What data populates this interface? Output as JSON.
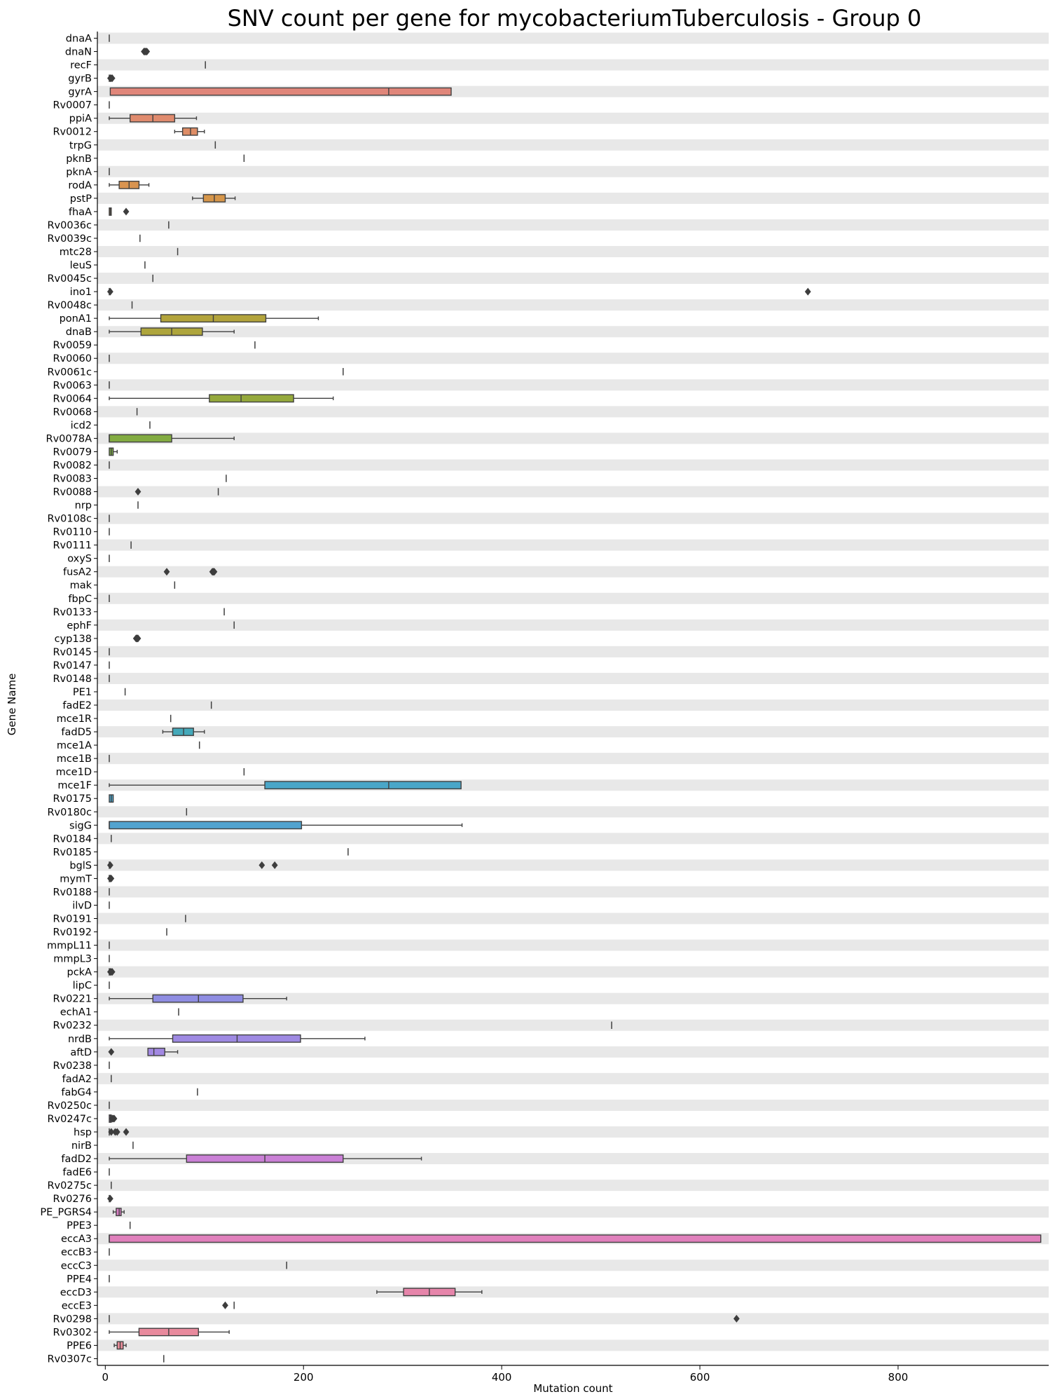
{
  "chart_data": {
    "type": "box",
    "orientation": "horizontal",
    "title": "SNV count per gene for mycobacteriumTuberculosis - Group 0",
    "xlabel": "Mutation count",
    "ylabel": "Gene Name",
    "xlim": [
      -8,
      952
    ],
    "xticks": [
      0,
      200,
      400,
      600,
      800
    ],
    "grid": false,
    "row_band_color": "#e8e8e8",
    "genes": [
      {
        "name": "dnaA",
        "q1": 4,
        "med": 4,
        "q3": 4,
        "wlo": 4,
        "whi": 4,
        "fliers": [],
        "color": "#e8837c"
      },
      {
        "name": "dnaN",
        "q1": 40,
        "med": 40,
        "q3": 40,
        "wlo": 40,
        "whi": 40,
        "fliers": [
          39,
          41,
          42
        ],
        "color": "#e8837c"
      },
      {
        "name": "recF",
        "q1": 101,
        "med": 101,
        "q3": 101,
        "wlo": 101,
        "whi": 101,
        "fliers": [],
        "color": "#e8837c"
      },
      {
        "name": "gyrB",
        "q1": 4,
        "med": 4,
        "q3": 4,
        "wlo": 4,
        "whi": 4,
        "fliers": [
          5,
          6,
          7
        ],
        "color": "#e8837c"
      },
      {
        "name": "gyrA",
        "q1": 5,
        "med": 286,
        "q3": 349,
        "wlo": 5,
        "whi": 349,
        "fliers": [],
        "color": "#e0867a"
      },
      {
        "name": "Rv0007",
        "q1": 4,
        "med": 4,
        "q3": 4,
        "wlo": 4,
        "whi": 4,
        "fliers": [],
        "color": "#e08a6e"
      },
      {
        "name": "ppiA",
        "q1": 25,
        "med": 48,
        "q3": 70,
        "wlo": 4,
        "whi": 92,
        "fliers": [],
        "color": "#e08b6e"
      },
      {
        "name": "Rv0012",
        "q1": 78,
        "med": 86,
        "q3": 93,
        "wlo": 70,
        "whi": 100,
        "fliers": [],
        "color": "#de8d66"
      },
      {
        "name": "trpG",
        "q1": 111,
        "med": 111,
        "q3": 111,
        "wlo": 111,
        "whi": 111,
        "fliers": [],
        "color": "#dd8f5f"
      },
      {
        "name": "pknB",
        "q1": 140,
        "med": 140,
        "q3": 140,
        "wlo": 140,
        "whi": 140,
        "fliers": [],
        "color": "#dc915a"
      },
      {
        "name": "pknA",
        "q1": 4,
        "med": 4,
        "q3": 4,
        "wlo": 4,
        "whi": 4,
        "fliers": [],
        "color": "#db9355"
      },
      {
        "name": "rodA",
        "q1": 14,
        "med": 24,
        "q3": 34,
        "wlo": 4,
        "whi": 44,
        "fliers": [],
        "color": "#d99450"
      },
      {
        "name": "pstP",
        "q1": 99,
        "med": 110,
        "q3": 121,
        "wlo": 88,
        "whi": 131,
        "fliers": [],
        "color": "#d6964a"
      },
      {
        "name": "fhaA",
        "q1": 4,
        "med": 5,
        "q3": 6,
        "wlo": 4,
        "whi": 6,
        "fliers": [
          21
        ],
        "color": "#d49846"
      },
      {
        "name": "Rv0036c",
        "q1": 64,
        "med": 64,
        "q3": 64,
        "wlo": 64,
        "whi": 64,
        "fliers": [],
        "color": "#d09a42"
      },
      {
        "name": "Rv0039c",
        "q1": 35,
        "med": 35,
        "q3": 35,
        "wlo": 35,
        "whi": 35,
        "fliers": [],
        "color": "#cc9c40"
      },
      {
        "name": "mtc28",
        "q1": 73,
        "med": 73,
        "q3": 73,
        "wlo": 73,
        "whi": 73,
        "fliers": [],
        "color": "#c89e3e"
      },
      {
        "name": "leuS",
        "q1": 40,
        "med": 40,
        "q3": 40,
        "wlo": 40,
        "whi": 40,
        "fliers": [],
        "color": "#c4a03c"
      },
      {
        "name": "Rv0045c",
        "q1": 48,
        "med": 48,
        "q3": 48,
        "wlo": 48,
        "whi": 48,
        "fliers": [],
        "color": "#c0a23c"
      },
      {
        "name": "ino1",
        "q1": 4,
        "med": 4,
        "q3": 4,
        "wlo": 4,
        "whi": 4,
        "fliers": [
          5,
          709
        ],
        "color": "#bca33c"
      },
      {
        "name": "Rv0048c",
        "q1": 27,
        "med": 27,
        "q3": 27,
        "wlo": 27,
        "whi": 27,
        "fliers": [],
        "color": "#b8a53c"
      },
      {
        "name": "ponA1",
        "q1": 56,
        "med": 109,
        "q3": 162,
        "wlo": 4,
        "whi": 215,
        "fliers": [],
        "color": "#b3a43c"
      },
      {
        "name": "dnaB",
        "q1": 36,
        "med": 67,
        "q3": 98,
        "wlo": 4,
        "whi": 130,
        "fliers": [],
        "color": "#aea53c"
      },
      {
        "name": "Rv0059",
        "q1": 151,
        "med": 151,
        "q3": 151,
        "wlo": 151,
        "whi": 151,
        "fliers": [],
        "color": "#a9a63c"
      },
      {
        "name": "Rv0060",
        "q1": 4,
        "med": 4,
        "q3": 4,
        "wlo": 4,
        "whi": 4,
        "fliers": [],
        "color": "#a4a73c"
      },
      {
        "name": "Rv0061c",
        "q1": 240,
        "med": 240,
        "q3": 240,
        "wlo": 240,
        "whi": 240,
        "fliers": [],
        "color": "#9fa83c"
      },
      {
        "name": "Rv0063",
        "q1": 4,
        "med": 4,
        "q3": 4,
        "wlo": 4,
        "whi": 4,
        "fliers": [],
        "color": "#9aa93c"
      },
      {
        "name": "Rv0064",
        "q1": 105,
        "med": 137,
        "q3": 190,
        "wlo": 4,
        "whi": 230,
        "fliers": [],
        "color": "#95a93c"
      },
      {
        "name": "Rv0068",
        "q1": 32,
        "med": 32,
        "q3": 32,
        "wlo": 32,
        "whi": 32,
        "fliers": [],
        "color": "#8faa3c"
      },
      {
        "name": "icd2",
        "q1": 45,
        "med": 45,
        "q3": 45,
        "wlo": 45,
        "whi": 45,
        "fliers": [],
        "color": "#89ab3c"
      },
      {
        "name": "Rv0078A",
        "q1": 4,
        "med": 4,
        "q3": 67,
        "wlo": 4,
        "whi": 130,
        "fliers": [],
        "color": "#83ac42"
      },
      {
        "name": "Rv0079",
        "q1": 4,
        "med": 6,
        "q3": 8,
        "wlo": 4,
        "whi": 12,
        "fliers": [],
        "color": "#7dac48"
      },
      {
        "name": "Rv0082",
        "q1": 4,
        "med": 4,
        "q3": 4,
        "wlo": 4,
        "whi": 4,
        "fliers": [],
        "color": "#77ad4e"
      },
      {
        "name": "Rv0083",
        "q1": 122,
        "med": 122,
        "q3": 122,
        "wlo": 122,
        "whi": 122,
        "fliers": [],
        "color": "#71ad54"
      },
      {
        "name": "Rv0088",
        "q1": 114,
        "med": 114,
        "q3": 114,
        "wlo": 114,
        "whi": 114,
        "fliers": [
          33
        ],
        "color": "#6bae5a"
      },
      {
        "name": "nrp",
        "q1": 33,
        "med": 33,
        "q3": 33,
        "wlo": 33,
        "whi": 33,
        "fliers": [],
        "color": "#65ae60"
      },
      {
        "name": "Rv0108c",
        "q1": 4,
        "med": 4,
        "q3": 4,
        "wlo": 4,
        "whi": 4,
        "fliers": [],
        "color": "#5fae66"
      },
      {
        "name": "Rv0110",
        "q1": 4,
        "med": 4,
        "q3": 4,
        "wlo": 4,
        "whi": 4,
        "fliers": [],
        "color": "#59ae6c"
      },
      {
        "name": "Rv0111",
        "q1": 26,
        "med": 26,
        "q3": 26,
        "wlo": 26,
        "whi": 26,
        "fliers": [],
        "color": "#53ae72"
      },
      {
        "name": "oxyS",
        "q1": 4,
        "med": 4,
        "q3": 4,
        "wlo": 4,
        "whi": 4,
        "fliers": [],
        "color": "#4eae78"
      },
      {
        "name": "fusA2",
        "q1": 109,
        "med": 109,
        "q3": 109,
        "wlo": 109,
        "whi": 109,
        "fliers": [
          62,
          108,
          110
        ],
        "color": "#4aae7e"
      },
      {
        "name": "mak",
        "q1": 70,
        "med": 70,
        "q3": 70,
        "wlo": 70,
        "whi": 70,
        "fliers": [],
        "color": "#46ae84"
      },
      {
        "name": "fbpC",
        "q1": 4,
        "med": 4,
        "q3": 4,
        "wlo": 4,
        "whi": 4,
        "fliers": [],
        "color": "#44ad8a"
      },
      {
        "name": "Rv0133",
        "q1": 120,
        "med": 120,
        "q3": 120,
        "wlo": 120,
        "whi": 120,
        "fliers": [],
        "color": "#43ad90"
      },
      {
        "name": "ephF",
        "q1": 130,
        "med": 130,
        "q3": 130,
        "wlo": 130,
        "whi": 130,
        "fliers": [],
        "color": "#42ad96"
      },
      {
        "name": "cyp138",
        "q1": 32,
        "med": 32,
        "q3": 32,
        "wlo": 32,
        "whi": 32,
        "fliers": [
          31,
          32,
          33
        ],
        "color": "#42ac9b"
      },
      {
        "name": "Rv0145",
        "q1": 4,
        "med": 4,
        "q3": 4,
        "wlo": 4,
        "whi": 4,
        "fliers": [],
        "color": "#42aca0"
      },
      {
        "name": "Rv0147",
        "q1": 4,
        "med": 4,
        "q3": 4,
        "wlo": 4,
        "whi": 4,
        "fliers": [],
        "color": "#42aba5"
      },
      {
        "name": "Rv0148",
        "q1": 4,
        "med": 4,
        "q3": 4,
        "wlo": 4,
        "whi": 4,
        "fliers": [],
        "color": "#42abaa"
      },
      {
        "name": "PE1",
        "q1": 20,
        "med": 20,
        "q3": 20,
        "wlo": 20,
        "whi": 20,
        "fliers": [],
        "color": "#42aaae"
      },
      {
        "name": "fadE2",
        "q1": 107,
        "med": 107,
        "q3": 107,
        "wlo": 107,
        "whi": 107,
        "fliers": [],
        "color": "#43aab2"
      },
      {
        "name": "mce1R",
        "q1": 66,
        "med": 66,
        "q3": 66,
        "wlo": 66,
        "whi": 66,
        "fliers": [],
        "color": "#44a9b6"
      },
      {
        "name": "fadD5",
        "q1": 68,
        "med": 79,
        "q3": 89,
        "wlo": 58,
        "whi": 100,
        "fliers": [],
        "color": "#45a9ba"
      },
      {
        "name": "mce1A",
        "q1": 95,
        "med": 95,
        "q3": 95,
        "wlo": 95,
        "whi": 95,
        "fliers": [],
        "color": "#46a8be"
      },
      {
        "name": "mce1B",
        "q1": 4,
        "med": 4,
        "q3": 4,
        "wlo": 4,
        "whi": 4,
        "fliers": [],
        "color": "#48a7c2"
      },
      {
        "name": "mce1D",
        "q1": 140,
        "med": 140,
        "q3": 140,
        "wlo": 140,
        "whi": 140,
        "fliers": [],
        "color": "#49a6c6"
      },
      {
        "name": "mce1F",
        "q1": 161,
        "med": 286,
        "q3": 359,
        "wlo": 4,
        "whi": 359,
        "fliers": [],
        "color": "#4aa6c8"
      },
      {
        "name": "Rv0175",
        "q1": 4,
        "med": 6,
        "q3": 8,
        "wlo": 4,
        "whi": 8,
        "fliers": [],
        "color": "#4ca5cb"
      },
      {
        "name": "Rv0180c",
        "q1": 82,
        "med": 82,
        "q3": 82,
        "wlo": 82,
        "whi": 82,
        "fliers": [],
        "color": "#4fa4cd"
      },
      {
        "name": "sigG",
        "q1": 4,
        "med": 4,
        "q3": 198,
        "wlo": 4,
        "whi": 360,
        "fliers": [],
        "color": "#52a3cf"
      },
      {
        "name": "Rv0184",
        "q1": 6,
        "med": 6,
        "q3": 6,
        "wlo": 6,
        "whi": 6,
        "fliers": [],
        "color": "#56a2d2"
      },
      {
        "name": "Rv0185",
        "q1": 245,
        "med": 245,
        "q3": 245,
        "wlo": 245,
        "whi": 245,
        "fliers": [],
        "color": "#5aa0d4"
      },
      {
        "name": "bglS",
        "q1": 4,
        "med": 4,
        "q3": 4,
        "wlo": 4,
        "whi": 4,
        "fliers": [
          5,
          158,
          171
        ],
        "color": "#5e9fd6"
      },
      {
        "name": "mymT",
        "q1": 4,
        "med": 4,
        "q3": 4,
        "wlo": 4,
        "whi": 4,
        "fliers": [
          5,
          6
        ],
        "color": "#639dd8"
      },
      {
        "name": "Rv0188",
        "q1": 4,
        "med": 4,
        "q3": 4,
        "wlo": 4,
        "whi": 4,
        "fliers": [],
        "color": "#689bda"
      },
      {
        "name": "ilvD",
        "q1": 4,
        "med": 4,
        "q3": 4,
        "wlo": 4,
        "whi": 4,
        "fliers": [],
        "color": "#6d99db"
      },
      {
        "name": "Rv0191",
        "q1": 81,
        "med": 81,
        "q3": 81,
        "wlo": 81,
        "whi": 81,
        "fliers": [],
        "color": "#7297dd"
      },
      {
        "name": "Rv0192",
        "q1": 62,
        "med": 62,
        "q3": 62,
        "wlo": 62,
        "whi": 62,
        "fliers": [],
        "color": "#7795de"
      },
      {
        "name": "mmpL11",
        "q1": 4,
        "med": 4,
        "q3": 4,
        "wlo": 4,
        "whi": 4,
        "fliers": [],
        "color": "#7c93df"
      },
      {
        "name": "mmpL3",
        "q1": 4,
        "med": 4,
        "q3": 4,
        "wlo": 4,
        "whi": 4,
        "fliers": [],
        "color": "#8191e0"
      },
      {
        "name": "pckA",
        "q1": 4,
        "med": 4,
        "q3": 4,
        "wlo": 4,
        "whi": 4,
        "fliers": [
          5,
          6,
          7
        ],
        "color": "#868fe1"
      },
      {
        "name": "lipC",
        "q1": 4,
        "med": 4,
        "q3": 4,
        "wlo": 4,
        "whi": 4,
        "fliers": [],
        "color": "#8b8ee2"
      },
      {
        "name": "Rv0221",
        "q1": 48,
        "med": 94,
        "q3": 139,
        "wlo": 4,
        "whi": 183,
        "fliers": [],
        "color": "#8f8de2"
      },
      {
        "name": "echA1",
        "q1": 74,
        "med": 74,
        "q3": 74,
        "wlo": 74,
        "whi": 74,
        "fliers": [],
        "color": "#948be2"
      },
      {
        "name": "Rv0232",
        "q1": 511,
        "med": 511,
        "q3": 511,
        "wlo": 511,
        "whi": 511,
        "fliers": [],
        "color": "#998ae2"
      },
      {
        "name": "nrdB",
        "q1": 68,
        "med": 133,
        "q3": 197,
        "wlo": 4,
        "whi": 262,
        "fliers": [],
        "color": "#9e89e2"
      },
      {
        "name": "aftD",
        "q1": 43,
        "med": 49,
        "q3": 60,
        "wlo": 43,
        "whi": 73,
        "fliers": [
          6
        ],
        "color": "#a288e2"
      },
      {
        "name": "Rv0238",
        "q1": 4,
        "med": 4,
        "q3": 4,
        "wlo": 4,
        "whi": 4,
        "fliers": [],
        "color": "#a787e2"
      },
      {
        "name": "fadA2",
        "q1": 6,
        "med": 6,
        "q3": 6,
        "wlo": 6,
        "whi": 6,
        "fliers": [],
        "color": "#ac86e1"
      },
      {
        "name": "fabG4",
        "q1": 93,
        "med": 93,
        "q3": 93,
        "wlo": 93,
        "whi": 93,
        "fliers": [],
        "color": "#b185e0"
      },
      {
        "name": "Rv0250c",
        "q1": 4,
        "med": 4,
        "q3": 4,
        "wlo": 4,
        "whi": 4,
        "fliers": [],
        "color": "#b684df"
      },
      {
        "name": "Rv0247c",
        "q1": 4,
        "med": 5,
        "q3": 6,
        "wlo": 4,
        "whi": 6,
        "fliers": [
          7,
          8,
          9
        ],
        "color": "#bb83de"
      },
      {
        "name": "hsp",
        "q1": 4,
        "med": 4,
        "q3": 4,
        "wlo": 4,
        "whi": 4,
        "fliers": [
          6,
          10,
          12,
          21
        ],
        "color": "#c082dc"
      },
      {
        "name": "nirB",
        "q1": 28,
        "med": 28,
        "q3": 28,
        "wlo": 28,
        "whi": 28,
        "fliers": [],
        "color": "#c581da"
      },
      {
        "name": "fadD2",
        "q1": 82,
        "med": 161,
        "q3": 240,
        "wlo": 4,
        "whi": 319,
        "fliers": [],
        "color": "#ca80d6"
      },
      {
        "name": "fadE6",
        "q1": 4,
        "med": 4,
        "q3": 4,
        "wlo": 4,
        "whi": 4,
        "fliers": [],
        "color": "#ce80d2"
      },
      {
        "name": "Rv0275c",
        "q1": 6,
        "med": 6,
        "q3": 6,
        "wlo": 6,
        "whi": 6,
        "fliers": [],
        "color": "#d27fce"
      },
      {
        "name": "Rv0276",
        "q1": 4,
        "med": 4,
        "q3": 4,
        "wlo": 4,
        "whi": 4,
        "fliers": [
          5
        ],
        "color": "#d67fca"
      },
      {
        "name": "PE_PGRS4",
        "q1": 11,
        "med": 14,
        "q3": 16,
        "wlo": 8,
        "whi": 19,
        "fliers": [],
        "color": "#da7fc5"
      },
      {
        "name": "PPE3",
        "q1": 25,
        "med": 25,
        "q3": 25,
        "wlo": 25,
        "whi": 25,
        "fliers": [],
        "color": "#dd80c1"
      },
      {
        "name": "eccA3",
        "q1": 4,
        "med": 4,
        "q3": 944,
        "wlo": 4,
        "whi": 944,
        "fliers": [],
        "color": "#e080bc"
      },
      {
        "name": "eccB3",
        "q1": 4,
        "med": 4,
        "q3": 4,
        "wlo": 4,
        "whi": 4,
        "fliers": [],
        "color": "#e281b8"
      },
      {
        "name": "eccC3",
        "q1": 183,
        "med": 183,
        "q3": 183,
        "wlo": 183,
        "whi": 183,
        "fliers": [],
        "color": "#e482b3"
      },
      {
        "name": "PPE4",
        "q1": 4,
        "med": 4,
        "q3": 4,
        "wlo": 4,
        "whi": 4,
        "fliers": [],
        "color": "#e583ae"
      },
      {
        "name": "eccD3",
        "q1": 301,
        "med": 327,
        "q3": 353,
        "wlo": 274,
        "whi": 380,
        "fliers": [],
        "color": "#e685aa"
      },
      {
        "name": "eccE3",
        "q1": 130,
        "med": 130,
        "q3": 130,
        "wlo": 130,
        "whi": 130,
        "fliers": [
          121
        ],
        "color": "#e786a5"
      },
      {
        "name": "Rv0298",
        "q1": 4,
        "med": 4,
        "q3": 4,
        "wlo": 4,
        "whi": 4,
        "fliers": [
          637
        ],
        "color": "#e888a1"
      },
      {
        "name": "Rv0302",
        "q1": 34,
        "med": 64,
        "q3": 94,
        "wlo": 4,
        "whi": 125,
        "fliers": [],
        "color": "#e88a9d"
      },
      {
        "name": "PPE6",
        "q1": 12,
        "med": 15,
        "q3": 18,
        "wlo": 9,
        "whi": 21,
        "fliers": [],
        "color": "#e88c99"
      },
      {
        "name": "Rv0307c",
        "q1": 59,
        "med": 59,
        "q3": 59,
        "wlo": 59,
        "whi": 59,
        "fliers": [],
        "color": "#e88e96"
      }
    ]
  }
}
